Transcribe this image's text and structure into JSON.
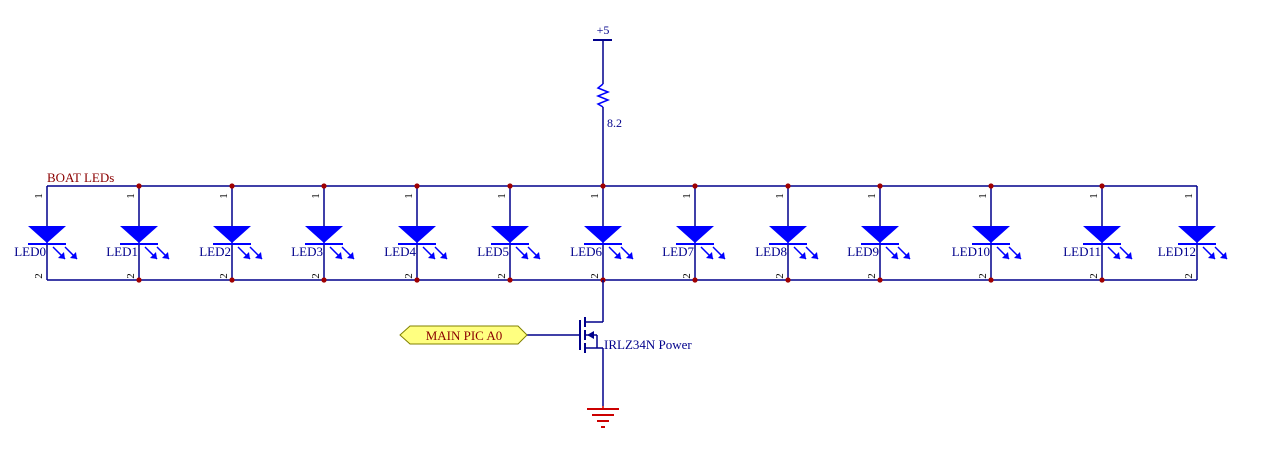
{
  "schematic": {
    "supply": {
      "label": "+5"
    },
    "resistor": {
      "value": "8.2"
    },
    "net_label": "BOAT LEDs",
    "leds": [
      {
        "ref": "LED0"
      },
      {
        "ref": "LED1"
      },
      {
        "ref": "LED2"
      },
      {
        "ref": "LED3"
      },
      {
        "ref": "LED4"
      },
      {
        "ref": "LED5"
      },
      {
        "ref": "LED6"
      },
      {
        "ref": "LED7"
      },
      {
        "ref": "LED8"
      },
      {
        "ref": "LED9"
      },
      {
        "ref": "LED10"
      },
      {
        "ref": "LED11"
      },
      {
        "ref": "LED12"
      }
    ],
    "pin_top": "1",
    "pin_bottom": "2",
    "port": {
      "label": "MAIN PIC A0"
    },
    "mosfet": {
      "label": "IRLZ34N Power"
    },
    "colors": {
      "wire": "#00008b",
      "component": "#0000ff",
      "junction": "#a00000",
      "net_label": "#8b0000",
      "ground": "#cc0000",
      "port_fill": "#ffff80",
      "port_stroke": "#808000",
      "pin_text": "#000000"
    }
  }
}
